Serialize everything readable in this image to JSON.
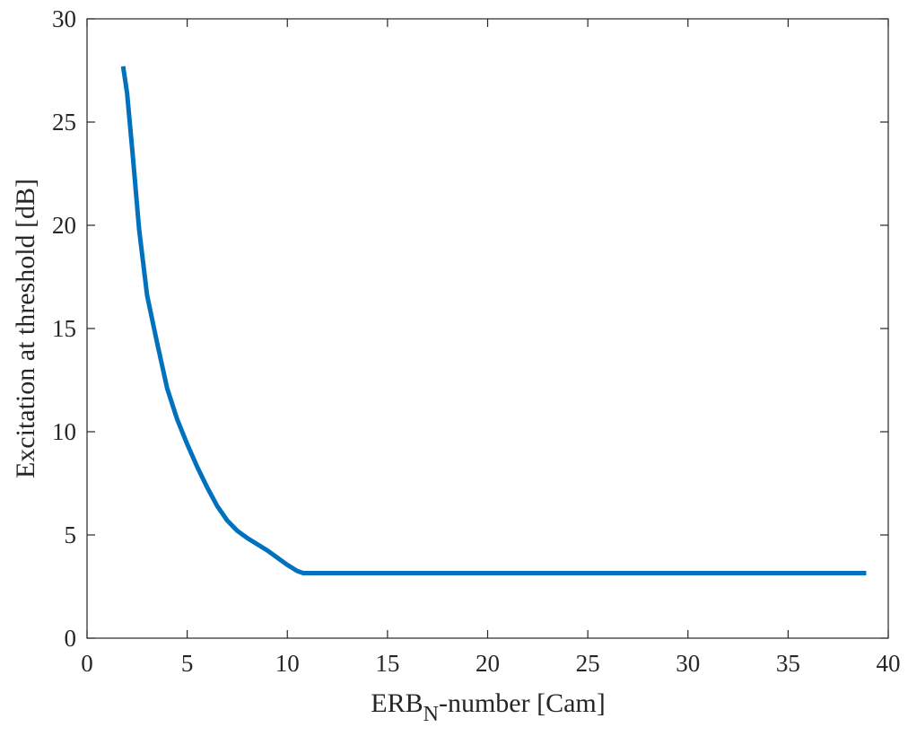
{
  "chart_data": {
    "type": "line",
    "xlabel_main": "ERB",
    "xlabel_sub": "N",
    "xlabel_rest": "-number [Cam]",
    "ylabel": "Excitation at threshold [dB]",
    "xlim": [
      0,
      40
    ],
    "ylim": [
      0,
      30
    ],
    "xticks": [
      "0",
      "5",
      "10",
      "15",
      "20",
      "25",
      "30",
      "35",
      "40"
    ],
    "yticks": [
      "0",
      "5",
      "10",
      "15",
      "20",
      "25",
      "30"
    ],
    "grid": false,
    "series": [
      {
        "color": "#0072BD",
        "x": [
          1.8,
          2.0,
          2.3,
          2.6,
          3.0,
          3.5,
          4.0,
          4.5,
          5.0,
          5.5,
          6.0,
          6.5,
          7.0,
          7.5,
          8.0,
          8.5,
          9.0,
          9.5,
          10.0,
          10.5,
          10.8,
          11.0,
          15.0,
          20.0,
          25.0,
          30.0,
          35.0,
          38.9
        ],
        "y": [
          27.7,
          26.4,
          23.2,
          19.8,
          16.6,
          14.3,
          12.1,
          10.6,
          9.4,
          8.3,
          7.3,
          6.4,
          5.7,
          5.2,
          4.85,
          4.55,
          4.25,
          3.9,
          3.55,
          3.25,
          3.15,
          3.15,
          3.15,
          3.15,
          3.15,
          3.15,
          3.15,
          3.15
        ]
      }
    ]
  }
}
